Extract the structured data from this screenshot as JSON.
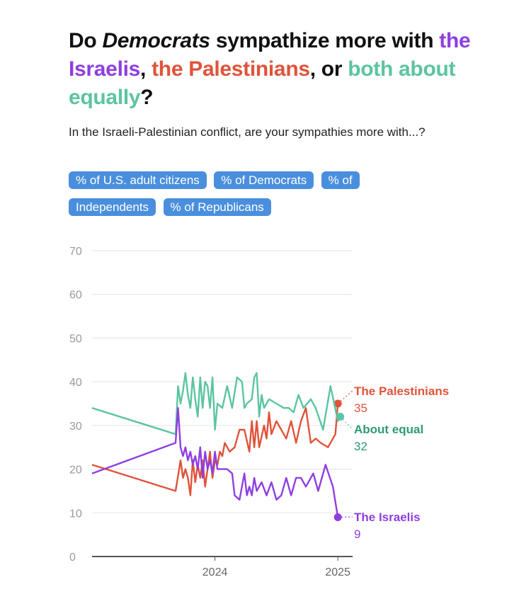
{
  "title": {
    "part1": "Do ",
    "emph": "Democrats",
    "part2": " sympathize more with ",
    "israelis": "the Israelis",
    "sep1": ", ",
    "palestinians": "the Palestinians",
    "sep2": ", or ",
    "equal": "both about equally",
    "end": "?"
  },
  "subtitle": "In the Israeli-Palestinian conflict, are your sympathies more with...?",
  "filters": [
    "% of U.S. adult citizens",
    "% of Democrats",
    "% of Independents",
    "% of Republicans"
  ],
  "colors": {
    "israelis": "#8e3fe0",
    "palestinians": "#e0533a",
    "equal": "#5cc4a2",
    "equal_label": "#2e9a76",
    "grid": "#e3e3e3",
    "axis": "#555555"
  },
  "chart_data": {
    "type": "line",
    "ylim": [
      0,
      70
    ],
    "yticks": [
      0,
      10,
      20,
      30,
      40,
      50,
      60,
      70
    ],
    "xlim": [
      2023.0,
      2025.12
    ],
    "xticks": [
      {
        "value": 2024.0,
        "label": "2024"
      },
      {
        "value": 2025.0,
        "label": "2025"
      }
    ],
    "series": [
      {
        "key": "palestinians",
        "name": "The Palestinians",
        "last_value": "35",
        "points": [
          [
            2023.0,
            21
          ],
          [
            2023.68,
            15
          ],
          [
            2023.72,
            22
          ],
          [
            2023.74,
            18
          ],
          [
            2023.76,
            20
          ],
          [
            2023.78,
            18
          ],
          [
            2023.8,
            14
          ],
          [
            2023.82,
            22
          ],
          [
            2023.84,
            17
          ],
          [
            2023.86,
            21
          ],
          [
            2023.88,
            18
          ],
          [
            2023.9,
            22
          ],
          [
            2023.92,
            16
          ],
          [
            2023.94,
            20
          ],
          [
            2023.96,
            24
          ],
          [
            2023.98,
            18
          ],
          [
            2024.0,
            22
          ],
          [
            2024.02,
            21
          ],
          [
            2024.04,
            24
          ],
          [
            2024.06,
            23
          ],
          [
            2024.08,
            26
          ],
          [
            2024.12,
            24
          ],
          [
            2024.16,
            25
          ],
          [
            2024.2,
            29
          ],
          [
            2024.24,
            29
          ],
          [
            2024.28,
            24
          ],
          [
            2024.3,
            31
          ],
          [
            2024.32,
            25
          ],
          [
            2024.34,
            31
          ],
          [
            2024.36,
            25
          ],
          [
            2024.4,
            30
          ],
          [
            2024.42,
            27
          ],
          [
            2024.44,
            33
          ],
          [
            2024.46,
            28
          ],
          [
            2024.5,
            31
          ],
          [
            2024.54,
            29
          ],
          [
            2024.58,
            27
          ],
          [
            2024.62,
            31
          ],
          [
            2024.66,
            26
          ],
          [
            2024.7,
            31
          ],
          [
            2024.74,
            34
          ],
          [
            2024.78,
            26
          ],
          [
            2024.82,
            27
          ],
          [
            2024.86,
            26
          ],
          [
            2024.92,
            25
          ],
          [
            2024.96,
            27
          ],
          [
            2024.98,
            28
          ],
          [
            2025.0,
            35
          ]
        ]
      },
      {
        "key": "equal",
        "name": "About equal",
        "last_value": "32",
        "points": [
          [
            2023.0,
            34
          ],
          [
            2023.68,
            28
          ],
          [
            2023.7,
            39
          ],
          [
            2023.72,
            35
          ],
          [
            2023.74,
            38
          ],
          [
            2023.76,
            42
          ],
          [
            2023.78,
            37
          ],
          [
            2023.8,
            34
          ],
          [
            2023.82,
            41
          ],
          [
            2023.84,
            36
          ],
          [
            2023.86,
            32
          ],
          [
            2023.88,
            41
          ],
          [
            2023.9,
            34
          ],
          [
            2023.92,
            40
          ],
          [
            2023.94,
            39
          ],
          [
            2023.96,
            34
          ],
          [
            2023.98,
            41
          ],
          [
            2024.0,
            29
          ],
          [
            2024.02,
            35
          ],
          [
            2024.06,
            34
          ],
          [
            2024.1,
            39
          ],
          [
            2024.14,
            34
          ],
          [
            2024.18,
            41
          ],
          [
            2024.22,
            40
          ],
          [
            2024.24,
            34
          ],
          [
            2024.26,
            35
          ],
          [
            2024.3,
            36
          ],
          [
            2024.32,
            41
          ],
          [
            2024.34,
            42
          ],
          [
            2024.36,
            32
          ],
          [
            2024.38,
            37
          ],
          [
            2024.4,
            34
          ],
          [
            2024.44,
            36
          ],
          [
            2024.5,
            35
          ],
          [
            2024.56,
            34
          ],
          [
            2024.6,
            34
          ],
          [
            2024.64,
            33
          ],
          [
            2024.68,
            37
          ],
          [
            2024.72,
            34
          ],
          [
            2024.78,
            36
          ],
          [
            2024.82,
            34
          ],
          [
            2024.88,
            29
          ],
          [
            2024.94,
            39
          ],
          [
            2025.0,
            31
          ],
          [
            2025.02,
            32
          ]
        ]
      },
      {
        "key": "israelis",
        "name": "The Israelis",
        "last_value": "9",
        "points": [
          [
            2023.0,
            19
          ],
          [
            2023.68,
            26
          ],
          [
            2023.7,
            34
          ],
          [
            2023.72,
            25
          ],
          [
            2023.74,
            23
          ],
          [
            2023.76,
            25
          ],
          [
            2023.78,
            22
          ],
          [
            2023.8,
            24
          ],
          [
            2023.82,
            21
          ],
          [
            2023.84,
            23
          ],
          [
            2023.86,
            20
          ],
          [
            2023.88,
            25
          ],
          [
            2023.9,
            18
          ],
          [
            2023.92,
            24
          ],
          [
            2023.94,
            20
          ],
          [
            2023.96,
            22
          ],
          [
            2023.98,
            19
          ],
          [
            2024.0,
            24
          ],
          [
            2024.02,
            20
          ],
          [
            2024.06,
            20
          ],
          [
            2024.1,
            20
          ],
          [
            2024.14,
            19
          ],
          [
            2024.16,
            14
          ],
          [
            2024.2,
            13
          ],
          [
            2024.24,
            19
          ],
          [
            2024.26,
            14
          ],
          [
            2024.28,
            16
          ],
          [
            2024.3,
            14
          ],
          [
            2024.32,
            18
          ],
          [
            2024.34,
            15
          ],
          [
            2024.38,
            17
          ],
          [
            2024.42,
            14
          ],
          [
            2024.46,
            17
          ],
          [
            2024.5,
            13
          ],
          [
            2024.54,
            14
          ],
          [
            2024.58,
            18
          ],
          [
            2024.62,
            14
          ],
          [
            2024.66,
            18
          ],
          [
            2024.7,
            18
          ],
          [
            2024.74,
            16
          ],
          [
            2024.8,
            19
          ],
          [
            2024.84,
            15
          ],
          [
            2024.9,
            21
          ],
          [
            2024.96,
            16
          ],
          [
            2025.0,
            9
          ]
        ]
      }
    ]
  }
}
